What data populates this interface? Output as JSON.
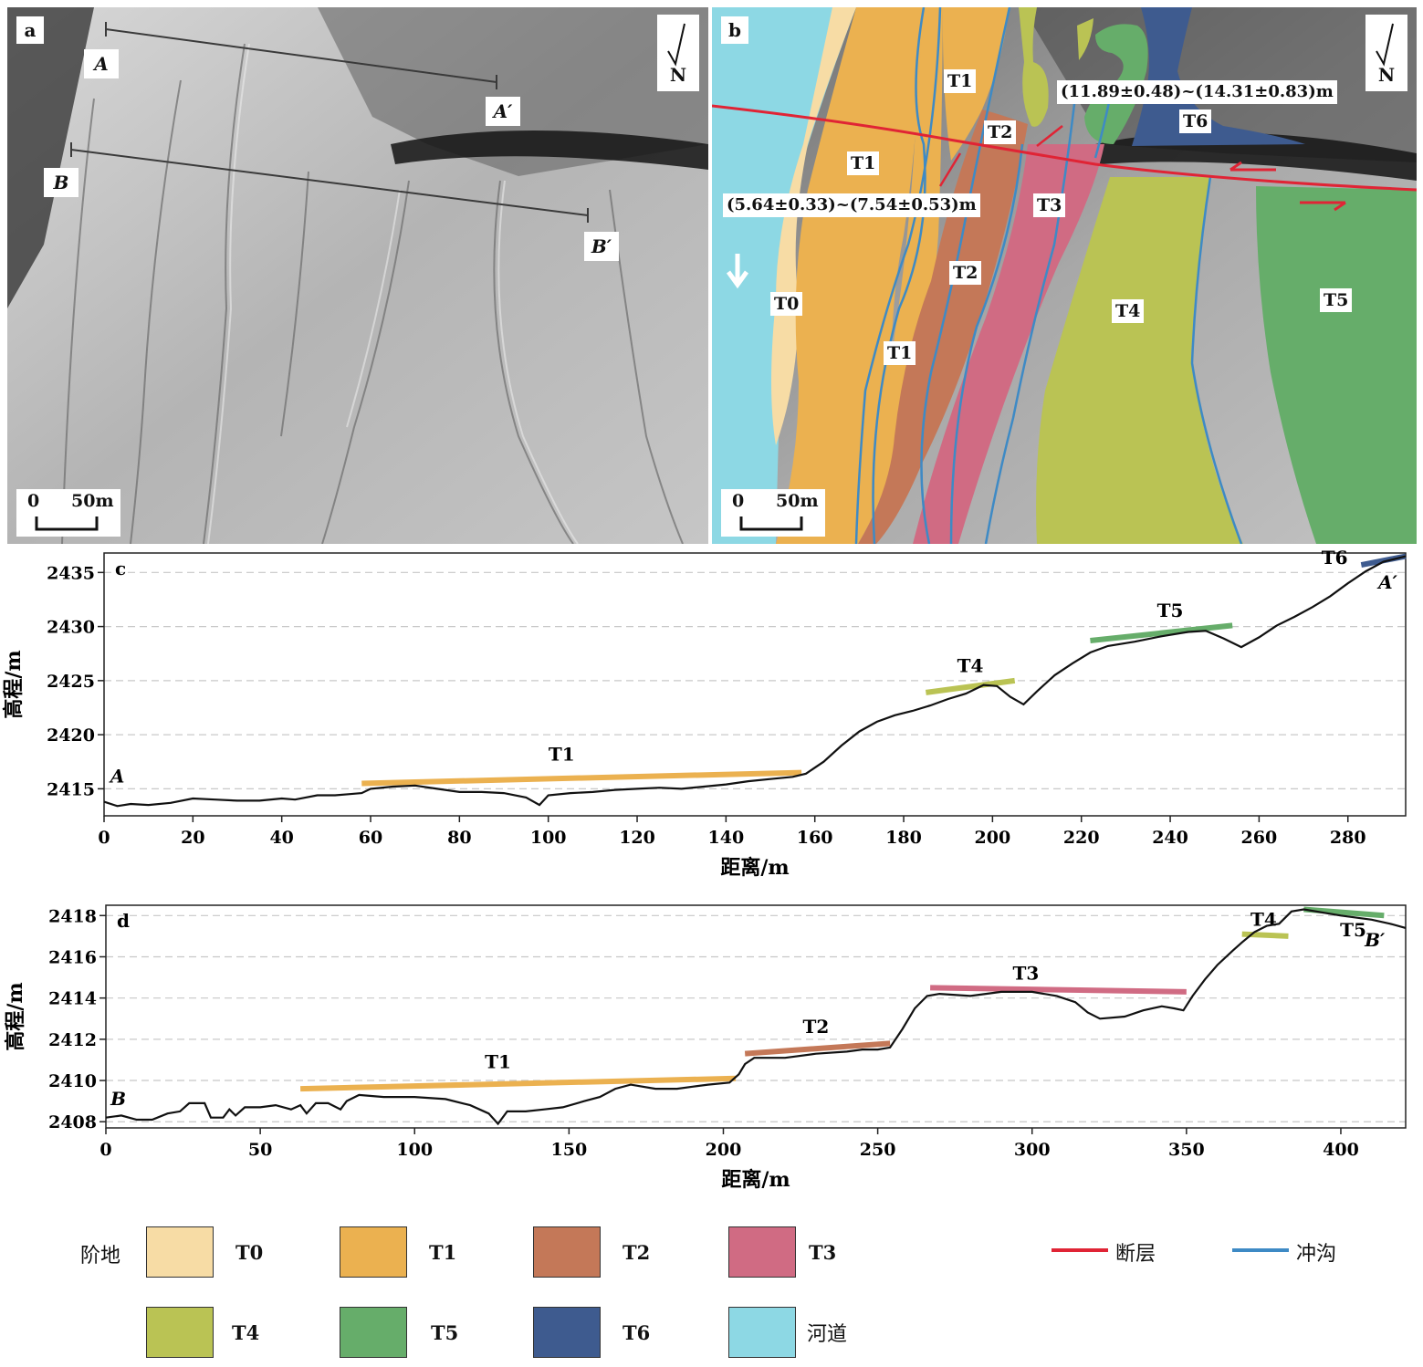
{
  "panel_a": {
    "letter": "a",
    "north": "N",
    "scale": {
      "zero": "0",
      "end": "50m"
    },
    "profile_points": {
      "a_start": "A",
      "a_end": "A′",
      "b_start": "B",
      "b_end": "B′"
    }
  },
  "panel_b": {
    "letter": "b",
    "north": "N",
    "scale": {
      "zero": "0",
      "end": "50m"
    },
    "units": [
      "T1",
      "T1",
      "T1",
      "T2",
      "T2",
      "T3",
      "T0",
      "T4",
      "T5",
      "T6"
    ],
    "offset_small": "(5.64±0.33)~(7.54±0.53)m",
    "offset_large": "(11.89±0.48)~(14.31±0.83)m"
  },
  "colors": {
    "T0": "#f7dca5",
    "T1": "#ebb150",
    "T2": "#c47858",
    "T3": "#d06b83",
    "T4": "#bac354",
    "T5": "#66ad6a",
    "T6": "#3e5b8f",
    "channel": "#8dd8e4",
    "fault": "#e02435",
    "gully": "#3e8ac5"
  },
  "chart_data": [
    {
      "type": "line",
      "panel": "c",
      "xlabel": "距离/m",
      "ylabel": "高程/m",
      "xlim": [
        0,
        293
      ],
      "ylim": [
        2412.5,
        2436.8
      ],
      "xticks": [
        0,
        20,
        40,
        60,
        80,
        100,
        120,
        140,
        160,
        180,
        200,
        220,
        240,
        260,
        280
      ],
      "yticks": [
        2415,
        2420,
        2425,
        2430,
        2435
      ],
      "grid": "horizontal dashed",
      "start_label": "A",
      "end_label": "A′",
      "profile": [
        [
          0,
          2413.8
        ],
        [
          3,
          2413.4
        ],
        [
          6,
          2413.6
        ],
        [
          10,
          2413.5
        ],
        [
          15,
          2413.7
        ],
        [
          20,
          2414.1
        ],
        [
          25,
          2414.0
        ],
        [
          30,
          2413.9
        ],
        [
          35,
          2413.9
        ],
        [
          40,
          2414.1
        ],
        [
          43,
          2414.0
        ],
        [
          48,
          2414.4
        ],
        [
          52,
          2414.4
        ],
        [
          55,
          2414.5
        ],
        [
          58,
          2414.6
        ],
        [
          60,
          2415.0
        ],
        [
          65,
          2415.2
        ],
        [
          70,
          2415.3
        ],
        [
          75,
          2415.0
        ],
        [
          80,
          2414.7
        ],
        [
          85,
          2414.7
        ],
        [
          90,
          2414.6
        ],
        [
          95,
          2414.2
        ],
        [
          98,
          2413.5
        ],
        [
          100,
          2414.4
        ],
        [
          105,
          2414.6
        ],
        [
          110,
          2414.7
        ],
        [
          115,
          2414.9
        ],
        [
          120,
          2415.0
        ],
        [
          125,
          2415.1
        ],
        [
          130,
          2415.0
        ],
        [
          135,
          2415.2
        ],
        [
          140,
          2415.4
        ],
        [
          145,
          2415.7
        ],
        [
          150,
          2415.9
        ],
        [
          155,
          2416.1
        ],
        [
          158,
          2416.4
        ],
        [
          162,
          2417.5
        ],
        [
          166,
          2419.0
        ],
        [
          170,
          2420.3
        ],
        [
          174,
          2421.2
        ],
        [
          178,
          2421.8
        ],
        [
          182,
          2422.2
        ],
        [
          186,
          2422.7
        ],
        [
          190,
          2423.3
        ],
        [
          194,
          2423.8
        ],
        [
          198,
          2424.6
        ],
        [
          201,
          2424.5
        ],
        [
          204,
          2423.5
        ],
        [
          207,
          2422.8
        ],
        [
          210,
          2424.0
        ],
        [
          214,
          2425.5
        ],
        [
          218,
          2426.6
        ],
        [
          222,
          2427.6
        ],
        [
          226,
          2428.2
        ],
        [
          232,
          2428.6
        ],
        [
          238,
          2429.1
        ],
        [
          244,
          2429.5
        ],
        [
          248,
          2429.6
        ],
        [
          252,
          2428.9
        ],
        [
          256,
          2428.1
        ],
        [
          260,
          2429.0
        ],
        [
          264,
          2430.1
        ],
        [
          268,
          2430.9
        ],
        [
          272,
          2431.8
        ],
        [
          276,
          2432.8
        ],
        [
          280,
          2434.0
        ],
        [
          284,
          2435.1
        ],
        [
          288,
          2436.0
        ],
        [
          293,
          2436.5
        ]
      ],
      "series": [
        {
          "name": "T1",
          "x": [
            58,
            157
          ],
          "y": [
            2415.5,
            2416.5
          ]
        },
        {
          "name": "T4",
          "x": [
            185,
            205
          ],
          "y": [
            2423.9,
            2425.0
          ]
        },
        {
          "name": "T5",
          "x": [
            222,
            254
          ],
          "y": [
            2428.7,
            2430.1
          ]
        },
        {
          "name": "T6",
          "x": [
            283,
            293
          ],
          "y": [
            2435.7,
            2436.5
          ]
        }
      ]
    },
    {
      "type": "line",
      "panel": "d",
      "xlabel": "距离/m",
      "ylabel": "高程/m",
      "xlim": [
        0,
        421
      ],
      "ylim": [
        2407.7,
        2418.5
      ],
      "xticks": [
        0,
        50,
        100,
        150,
        200,
        250,
        300,
        350,
        400
      ],
      "yticks": [
        2408,
        2410,
        2412,
        2414,
        2416,
        2418
      ],
      "grid": "horizontal dashed",
      "start_label": "B",
      "end_label": "B′",
      "profile": [
        [
          0,
          2408.2
        ],
        [
          5,
          2408.3
        ],
        [
          10,
          2408.1
        ],
        [
          15,
          2408.1
        ],
        [
          20,
          2408.4
        ],
        [
          24,
          2408.5
        ],
        [
          27,
          2408.9
        ],
        [
          32,
          2408.9
        ],
        [
          34,
          2408.2
        ],
        [
          38,
          2408.2
        ],
        [
          40,
          2408.6
        ],
        [
          42,
          2408.3
        ],
        [
          45,
          2408.7
        ],
        [
          50,
          2408.7
        ],
        [
          55,
          2408.8
        ],
        [
          60,
          2408.6
        ],
        [
          63,
          2408.8
        ],
        [
          65,
          2408.4
        ],
        [
          68,
          2408.9
        ],
        [
          72,
          2408.9
        ],
        [
          76,
          2408.6
        ],
        [
          78,
          2409.0
        ],
        [
          82,
          2409.3
        ],
        [
          90,
          2409.2
        ],
        [
          100,
          2409.2
        ],
        [
          110,
          2409.1
        ],
        [
          118,
          2408.8
        ],
        [
          124,
          2408.4
        ],
        [
          127,
          2407.9
        ],
        [
          130,
          2408.5
        ],
        [
          136,
          2408.5
        ],
        [
          142,
          2408.6
        ],
        [
          148,
          2408.7
        ],
        [
          155,
          2409.0
        ],
        [
          160,
          2409.2
        ],
        [
          165,
          2409.6
        ],
        [
          170,
          2409.8
        ],
        [
          178,
          2409.6
        ],
        [
          185,
          2409.6
        ],
        [
          190,
          2409.7
        ],
        [
          195,
          2409.8
        ],
        [
          202,
          2409.9
        ],
        [
          205,
          2410.3
        ],
        [
          207,
          2410.8
        ],
        [
          210,
          2411.1
        ],
        [
          220,
          2411.1
        ],
        [
          230,
          2411.3
        ],
        [
          240,
          2411.4
        ],
        [
          245,
          2411.5
        ],
        [
          250,
          2411.5
        ],
        [
          254,
          2411.6
        ],
        [
          258,
          2412.5
        ],
        [
          262,
          2413.5
        ],
        [
          266,
          2414.1
        ],
        [
          270,
          2414.2
        ],
        [
          280,
          2414.1
        ],
        [
          290,
          2414.3
        ],
        [
          300,
          2414.3
        ],
        [
          308,
          2414.1
        ],
        [
          314,
          2413.8
        ],
        [
          318,
          2413.3
        ],
        [
          322,
          2413.0
        ],
        [
          330,
          2413.1
        ],
        [
          336,
          2413.4
        ],
        [
          342,
          2413.6
        ],
        [
          346,
          2413.5
        ],
        [
          349,
          2413.4
        ],
        [
          352,
          2414.1
        ],
        [
          356,
          2414.9
        ],
        [
          360,
          2415.6
        ],
        [
          365,
          2416.3
        ],
        [
          368,
          2416.7
        ],
        [
          372,
          2417.2
        ],
        [
          376,
          2417.5
        ],
        [
          380,
          2417.6
        ],
        [
          384,
          2418.2
        ],
        [
          388,
          2418.3
        ],
        [
          400,
          2418.0
        ],
        [
          410,
          2417.8
        ],
        [
          416,
          2417.6
        ],
        [
          421,
          2417.4
        ]
      ],
      "series": [
        {
          "name": "T1",
          "x": [
            63,
            204
          ],
          "y": [
            2409.6,
            2410.1
          ]
        },
        {
          "name": "T2",
          "x": [
            207,
            254
          ],
          "y": [
            2411.3,
            2411.8
          ]
        },
        {
          "name": "T3",
          "x": [
            267,
            350
          ],
          "y": [
            2414.5,
            2414.3
          ]
        },
        {
          "name": "T4",
          "x": [
            368,
            383
          ],
          "y": [
            2417.1,
            2417.0
          ]
        },
        {
          "name": "T5",
          "x": [
            388,
            414
          ],
          "y": [
            2418.3,
            2418.0
          ]
        }
      ]
    }
  ],
  "legend": {
    "title": "阶地",
    "items": [
      "T0",
      "T1",
      "T2",
      "T3",
      "T4",
      "T5",
      "T6",
      "河道"
    ],
    "lines": [
      "断层",
      "冲沟"
    ]
  }
}
